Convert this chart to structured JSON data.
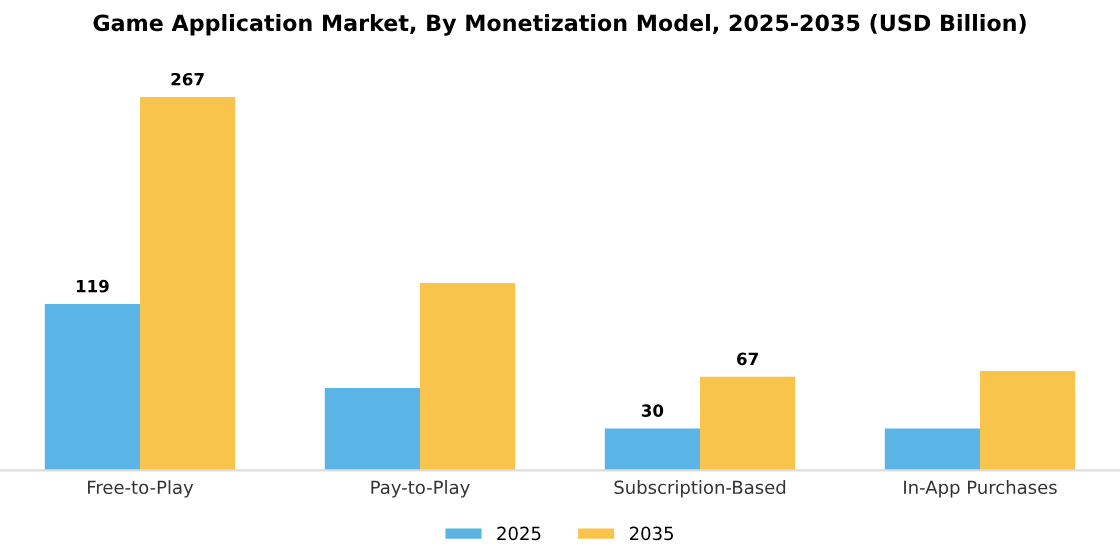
{
  "chart_data": {
    "type": "bar",
    "title": "Game Application Market, By Monetization Model, 2025-2035 (USD Billion)",
    "categories": [
      "Free-to-Play",
      "Pay-to-Play",
      "Subscription-Based",
      "In-App Purchases"
    ],
    "series": [
      {
        "name": "2025",
        "color": "#5ab4e6",
        "values": [
          119,
          59,
          30,
          30
        ],
        "value_labels": [
          "119",
          null,
          "30",
          null
        ]
      },
      {
        "name": "2035",
        "color": "#f8c44c",
        "values": [
          267,
          134,
          67,
          71
        ],
        "value_labels": [
          "267",
          null,
          "67",
          null
        ]
      }
    ],
    "legend": "bottom",
    "grid": false
  }
}
